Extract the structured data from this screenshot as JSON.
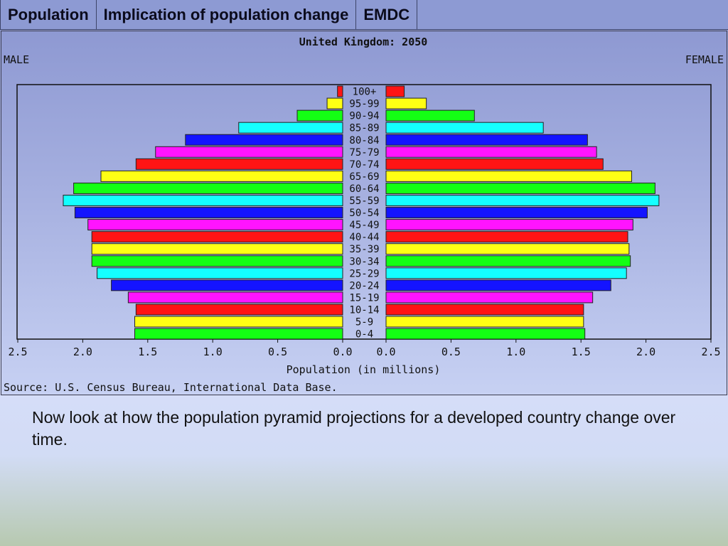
{
  "tabs": [
    {
      "label": "Population"
    },
    {
      "label": "Implication of population change"
    },
    {
      "label": "EMDC"
    }
  ],
  "caption": "Now look at how the population pyramid projections for a developed country change over time.",
  "chart_data": {
    "type": "bar",
    "title": "United Kingdom: 2050",
    "left_label": "MALE",
    "right_label": "FEMALE",
    "xlabel": "Population (in millions)",
    "source": "Source: U.S. Census Bureau, International Data Base.",
    "xlim": [
      0,
      2.5
    ],
    "x_ticks": [
      "2.5",
      "2.0",
      "1.5",
      "1.0",
      "0.5",
      "0.0"
    ],
    "x_ticks_right": [
      "0.0",
      "0.5",
      "1.0",
      "1.5",
      "2.0",
      "2.5"
    ],
    "categories": [
      "100+",
      "95-99",
      "90-94",
      "85-89",
      "80-84",
      "75-79",
      "70-74",
      "65-69",
      "60-64",
      "55-59",
      "50-54",
      "45-49",
      "40-44",
      "35-39",
      "30-34",
      "25-29",
      "20-24",
      "15-19",
      "10-14",
      "5-9",
      "0-4"
    ],
    "series": [
      {
        "name": "MALE",
        "values": [
          0.04,
          0.12,
          0.35,
          0.8,
          1.21,
          1.44,
          1.59,
          1.86,
          2.07,
          2.15,
          2.06,
          1.96,
          1.93,
          1.93,
          1.93,
          1.89,
          1.78,
          1.65,
          1.59,
          1.6,
          1.6
        ]
      },
      {
        "name": "FEMALE",
        "values": [
          0.14,
          0.31,
          0.68,
          1.21,
          1.55,
          1.62,
          1.67,
          1.89,
          2.07,
          2.1,
          2.01,
          1.9,
          1.86,
          1.87,
          1.88,
          1.85,
          1.73,
          1.59,
          1.52,
          1.52,
          1.53
        ]
      }
    ],
    "bar_colors": [
      "#ff1414",
      "#ffff14",
      "#14ff14",
      "#14ffff",
      "#1414ff",
      "#ff14ff"
    ],
    "grid": false
  }
}
